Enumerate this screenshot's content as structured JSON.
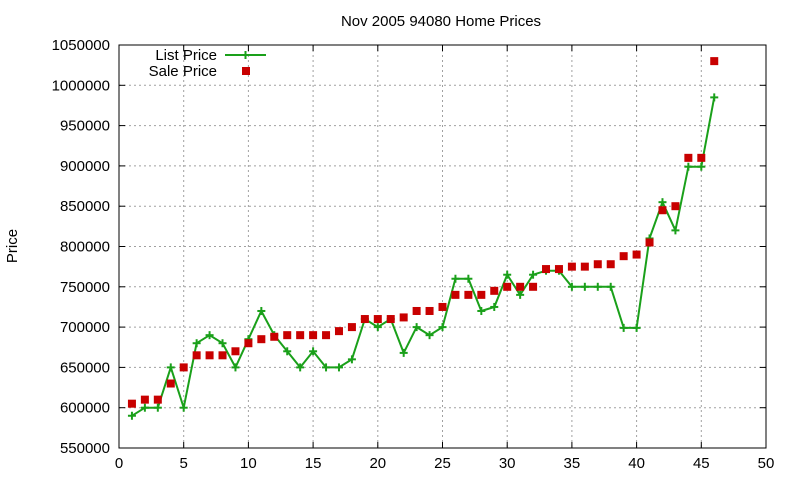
{
  "chart_data": {
    "type": "line",
    "title": "Nov 2005 94080 Home Prices",
    "xlabel": "",
    "ylabel": "Price",
    "xlim": [
      0,
      50
    ],
    "ylim": [
      550000,
      1050000
    ],
    "x_ticks": [
      0,
      5,
      10,
      15,
      20,
      25,
      30,
      35,
      40,
      45,
      50
    ],
    "y_ticks": [
      550000,
      600000,
      650000,
      700000,
      750000,
      800000,
      850000,
      900000,
      950000,
      1000000,
      1050000
    ],
    "grid": true,
    "legend_position": "top-left",
    "series": [
      {
        "name": "List Price",
        "style": "line-with-plus-markers",
        "color": "#1aa01a",
        "x": [
          1,
          2,
          3,
          4,
          5,
          6,
          7,
          8,
          9,
          10,
          11,
          12,
          13,
          14,
          15,
          16,
          17,
          18,
          19,
          20,
          21,
          22,
          23,
          24,
          25,
          26,
          27,
          28,
          29,
          30,
          31,
          32,
          33,
          34,
          35,
          36,
          37,
          38,
          39,
          40,
          41,
          42,
          43,
          44,
          45,
          46
        ],
        "values": [
          590000,
          600000,
          600000,
          650000,
          600000,
          680000,
          690000,
          680000,
          650000,
          685000,
          720000,
          690000,
          670000,
          650000,
          670000,
          650000,
          650000,
          660000,
          710000,
          700000,
          710000,
          668000,
          700000,
          690000,
          700000,
          760000,
          760000,
          720000,
          725000,
          765000,
          740000,
          765000,
          770000,
          770000,
          750000,
          750000,
          750000,
          750000,
          699000,
          699000,
          810000,
          855000,
          820000,
          899000,
          899000,
          985000
        ]
      },
      {
        "name": "Sale Price",
        "style": "square-markers",
        "color": "#c80000",
        "x": [
          1,
          2,
          3,
          4,
          5,
          6,
          7,
          8,
          9,
          10,
          11,
          12,
          13,
          14,
          15,
          16,
          17,
          18,
          19,
          20,
          21,
          22,
          23,
          24,
          25,
          26,
          27,
          28,
          29,
          30,
          31,
          32,
          33,
          34,
          35,
          36,
          37,
          38,
          39,
          40,
          41,
          42,
          43,
          44,
          45,
          46
        ],
        "values": [
          605000,
          610000,
          610000,
          630000,
          650000,
          665000,
          665000,
          665000,
          670000,
          680000,
          685000,
          688000,
          690000,
          690000,
          690000,
          690000,
          695000,
          700000,
          710000,
          710000,
          710000,
          712000,
          720000,
          720000,
          725000,
          740000,
          740000,
          740000,
          745000,
          750000,
          750000,
          750000,
          772000,
          772000,
          775000,
          775000,
          778000,
          778000,
          788000,
          790000,
          805000,
          845000,
          850000,
          910000,
          910000,
          1030000
        ]
      }
    ]
  }
}
